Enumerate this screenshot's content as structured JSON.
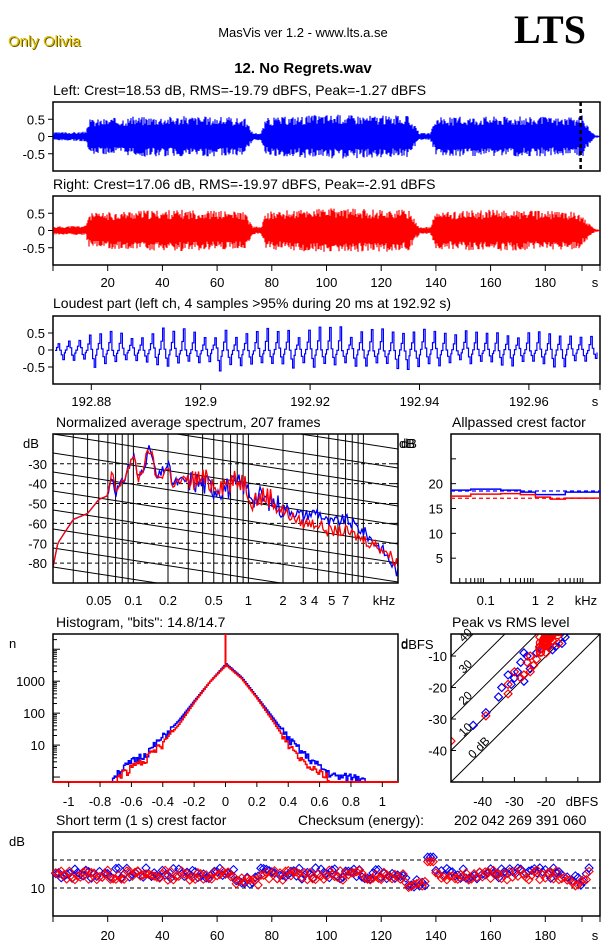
{
  "header": {
    "artist": "Only Olivia",
    "app_title": "MasVis ver 1.2 - www.lts.a.se",
    "logo": "LTS",
    "file_name": "12. No Regrets.wav"
  },
  "colors": {
    "left": "#0000ff",
    "right": "#ff0000",
    "brand": "#e0c000"
  },
  "chart_data": [
    {
      "id": "left-waveform",
      "type": "area",
      "title": "Left: Crest=18.53 dB, RMS=-19.79 dBFS, Peak=-1.27 dBFS",
      "channel": "left",
      "ylim": [
        -1,
        1
      ],
      "yticks": [
        "0.5",
        "0",
        "-0.5"
      ],
      "xlim": [
        0,
        200
      ],
      "marker_x": 192.92,
      "envelope": [
        [
          0,
          0.12
        ],
        [
          12,
          0.14
        ],
        [
          13,
          0.5
        ],
        [
          30,
          0.58
        ],
        [
          50,
          0.6
        ],
        [
          70,
          0.55
        ],
        [
          73,
          0.12
        ],
        [
          76,
          0.1
        ],
        [
          78,
          0.55
        ],
        [
          100,
          0.65
        ],
        [
          130,
          0.6
        ],
        [
          134,
          0.1
        ],
        [
          138,
          0.1
        ],
        [
          140,
          0.55
        ],
        [
          160,
          0.6
        ],
        [
          192,
          0.55
        ],
        [
          193,
          0.68
        ],
        [
          196,
          0.25
        ],
        [
          198,
          0.05
        ],
        [
          200,
          0.02
        ]
      ]
    },
    {
      "id": "right-waveform",
      "type": "area",
      "title": "Right: Crest=17.06 dB, RMS=-19.97 dBFS, Peak=-2.91 dBFS",
      "channel": "right",
      "ylim": [
        -1,
        1
      ],
      "yticks": [
        "0.5",
        "0",
        "-0.5"
      ],
      "xlim": [
        0,
        200
      ],
      "xticks": [
        "20",
        "40",
        "60",
        "80",
        "100",
        "120",
        "140",
        "160",
        "180",
        "s"
      ],
      "envelope": [
        [
          0,
          0.12
        ],
        [
          12,
          0.14
        ],
        [
          13,
          0.5
        ],
        [
          30,
          0.58
        ],
        [
          50,
          0.6
        ],
        [
          70,
          0.55
        ],
        [
          73,
          0.12
        ],
        [
          76,
          0.1
        ],
        [
          78,
          0.55
        ],
        [
          100,
          0.65
        ],
        [
          130,
          0.6
        ],
        [
          134,
          0.1
        ],
        [
          138,
          0.1
        ],
        [
          140,
          0.55
        ],
        [
          160,
          0.6
        ],
        [
          192,
          0.55
        ],
        [
          196,
          0.2
        ],
        [
          198,
          0.05
        ],
        [
          200,
          0.02
        ]
      ]
    },
    {
      "id": "loudest-part",
      "type": "line",
      "title": "Loudest part (left  ch, 4 samples >95% during 20 ms at 192.92 s)",
      "ylim": [
        -1,
        1
      ],
      "yticks": [
        "0.5",
        "0",
        "-0.5"
      ],
      "xlim": [
        192.873,
        192.973
      ],
      "xticks": [
        "192.88",
        "192.9",
        "192.92",
        "192.94",
        "192.96",
        "s"
      ],
      "peak_values": [
        0.3,
        0.5,
        0.55,
        0.5,
        0.7,
        0.55,
        0.6,
        0.65,
        0.7,
        0.6,
        0.85,
        0.6,
        0.65,
        0.6,
        0.75,
        0.6,
        0.55,
        0.5,
        0.55,
        0.5,
        0.45
      ],
      "trough_values": [
        -0.4,
        -0.6,
        -0.4,
        -0.45,
        -0.5,
        -0.55,
        -0.7,
        -0.6,
        -0.55,
        -0.55,
        -0.55,
        -0.5,
        -0.55,
        -0.7,
        -0.5,
        -0.45,
        -0.45,
        -0.5,
        -0.5,
        -0.5,
        -0.4
      ]
    },
    {
      "id": "spectrum",
      "type": "line",
      "title": "Normalized average spectrum, 207 frames",
      "ylabel": "dB",
      "yticks": [
        "-30",
        "-40",
        "-50",
        "-60",
        "-70",
        "-80"
      ],
      "ylim": [
        -90,
        -15
      ],
      "xscale": "log",
      "xlim": [
        0.02,
        20
      ],
      "xlabel": "kHz",
      "xticks": [
        "0.05",
        "0.1",
        "0.2",
        "0.5",
        "1",
        "2",
        "3",
        "4",
        "5",
        "7",
        "kHz"
      ],
      "series": [
        {
          "name": "left",
          "points": [
            [
              0.02,
              -82
            ],
            [
              0.022,
              -70
            ],
            [
              0.025,
              -65
            ],
            [
              0.03,
              -58
            ],
            [
              0.04,
              -55
            ],
            [
              0.05,
              -48
            ],
            [
              0.06,
              -46
            ],
            [
              0.065,
              -35
            ],
            [
              0.07,
              -44
            ],
            [
              0.08,
              -40
            ],
            [
              0.09,
              -32
            ],
            [
              0.1,
              -25
            ],
            [
              0.11,
              -38
            ],
            [
              0.14,
              -22
            ],
            [
              0.16,
              -38
            ],
            [
              0.2,
              -30
            ],
            [
              0.22,
              -40
            ],
            [
              0.3,
              -38
            ],
            [
              0.4,
              -40
            ],
            [
              0.5,
              -42
            ],
            [
              0.7,
              -42
            ],
            [
              0.9,
              -40
            ],
            [
              1.1,
              -46
            ],
            [
              1.5,
              -48
            ],
            [
              2,
              -52
            ],
            [
              3,
              -56
            ],
            [
              4,
              -54
            ],
            [
              5,
              -60
            ],
            [
              7,
              -58
            ],
            [
              10,
              -64
            ],
            [
              15,
              -74
            ],
            [
              20,
              -85
            ]
          ]
        },
        {
          "name": "right",
          "points": [
            [
              0.02,
              -82
            ],
            [
              0.022,
              -70
            ],
            [
              0.025,
              -65
            ],
            [
              0.03,
              -58
            ],
            [
              0.04,
              -55
            ],
            [
              0.05,
              -48
            ],
            [
              0.06,
              -46
            ],
            [
              0.065,
              -35
            ],
            [
              0.07,
              -44
            ],
            [
              0.08,
              -40
            ],
            [
              0.09,
              -32
            ],
            [
              0.1,
              -26
            ],
            [
              0.11,
              -38
            ],
            [
              0.14,
              -22
            ],
            [
              0.16,
              -38
            ],
            [
              0.2,
              -32
            ],
            [
              0.22,
              -40
            ],
            [
              0.3,
              -38
            ],
            [
              0.4,
              -38
            ],
            [
              0.5,
              -40
            ],
            [
              0.7,
              -40
            ],
            [
              0.9,
              -38
            ],
            [
              1.1,
              -48
            ],
            [
              1.5,
              -46
            ],
            [
              2,
              -54
            ],
            [
              3,
              -60
            ],
            [
              4,
              -60
            ],
            [
              5,
              -64
            ],
            [
              7,
              -64
            ],
            [
              10,
              -68
            ],
            [
              15,
              -73
            ],
            [
              20,
              -80
            ]
          ]
        }
      ]
    },
    {
      "id": "allpassed-crest",
      "type": "line",
      "title": "Allpassed crest factor",
      "ylabel": "dB",
      "yticks": [
        "20",
        "15",
        "10",
        "5"
      ],
      "ylim": [
        0,
        30
      ],
      "xscale": "log",
      "xlim": [
        0.02,
        20
      ],
      "xticks": [
        "0.1",
        "1",
        "2",
        "kHz"
      ],
      "series": [
        {
          "name": "left",
          "points": [
            [
              0.02,
              18.7
            ],
            [
              0.05,
              18.9
            ],
            [
              0.2,
              18.7
            ],
            [
              0.5,
              18.3
            ],
            [
              1,
              17.8
            ],
            [
              2,
              17.8
            ],
            [
              4,
              18.3
            ],
            [
              20,
              18.5
            ]
          ],
          "reference": 18.53
        },
        {
          "name": "right",
          "points": [
            [
              0.02,
              17.5
            ],
            [
              0.05,
              17.9
            ],
            [
              0.2,
              18.0
            ],
            [
              0.5,
              17.8
            ],
            [
              1,
              17.3
            ],
            [
              2,
              16.9
            ],
            [
              4,
              17.1
            ],
            [
              20,
              17.1
            ]
          ],
          "reference": 17.06
        }
      ]
    },
    {
      "id": "histogram",
      "type": "line",
      "title": "Histogram, \"bits\": 14.8/14.7",
      "ylabel": "n",
      "yscale": "log",
      "yticks": [
        "1000",
        "100",
        "10"
      ],
      "ylim": [
        0.7,
        30000
      ],
      "xlim": [
        -1.1,
        1.1
      ],
      "xticks": [
        "-1",
        "-0.8",
        "-0.6",
        "-0.4",
        "-0.2",
        "0",
        "0.2",
        "0.4",
        "0.6",
        "0.8",
        "1"
      ],
      "series": [
        {
          "name": "left",
          "points": [
            [
              -0.73,
              1
            ],
            [
              -0.6,
              3
            ],
            [
              -0.5,
              6
            ],
            [
              -0.4,
              18
            ],
            [
              -0.3,
              60
            ],
            [
              -0.2,
              250
            ],
            [
              -0.1,
              1000
            ],
            [
              0,
              3500
            ],
            [
              0.1,
              1300
            ],
            [
              0.2,
              300
            ],
            [
              0.3,
              70
            ],
            [
              0.4,
              15
            ],
            [
              0.5,
              5
            ],
            [
              0.6,
              2
            ],
            [
              0.7,
              1
            ],
            [
              0.88,
              1
            ]
          ]
        },
        {
          "name": "right",
          "points": [
            [
              -0.7,
              1
            ],
            [
              -0.6,
              2
            ],
            [
              -0.5,
              4
            ],
            [
              -0.4,
              12
            ],
            [
              -0.3,
              45
            ],
            [
              -0.2,
              230
            ],
            [
              -0.1,
              1000
            ],
            [
              0,
              3200
            ],
            [
              0.1,
              1200
            ],
            [
              0.2,
              280
            ],
            [
              0.3,
              55
            ],
            [
              0.4,
              10
            ],
            [
              0.5,
              3
            ],
            [
              0.6,
              1.5
            ],
            [
              0.65,
              1
            ]
          ]
        }
      ],
      "zero_spike": 30000
    },
    {
      "id": "peak-vs-rms",
      "type": "scatter",
      "title": "Peak vs RMS level",
      "ylabel": "dBFS",
      "xlabel": "dBFS",
      "xlim": [
        -50,
        -3
      ],
      "ylim": [
        -50,
        -3
      ],
      "xticks": [
        "-40",
        "-30",
        "-20",
        "dBFS"
      ],
      "yticks": [
        "-10",
        "-20",
        "-30",
        "-40"
      ],
      "diagonals": [
        "0 dB",
        "10",
        "20",
        "30",
        "40"
      ],
      "series": [
        {
          "name": "left",
          "points": [
            [
              -14,
              -4
            ],
            [
              -15,
              -6
            ],
            [
              -17,
              -7
            ],
            [
              -20,
              -4
            ],
            [
              -22,
              -7
            ],
            [
              -23,
              -9
            ],
            [
              -27,
              -9
            ],
            [
              -28,
              -12
            ],
            [
              -29,
              -15
            ],
            [
              -30,
              -17
            ],
            [
              -31,
              -19
            ],
            [
              -32,
              -16
            ],
            [
              -34,
              -20
            ],
            [
              -35,
              -23
            ],
            [
              -39,
              -28
            ],
            [
              -43,
              -32
            ],
            [
              -26,
              -10
            ],
            [
              -18,
              -8
            ],
            [
              -25,
              -14
            ],
            [
              -27,
              -18
            ]
          ]
        },
        {
          "name": "right",
          "points": [
            [
              -21,
              -5
            ],
            [
              -20,
              -6
            ],
            [
              -19,
              -7
            ],
            [
              -22,
              -4
            ],
            [
              -18,
              -5
            ],
            [
              -16,
              -6
            ],
            [
              -20,
              -9
            ],
            [
              -23,
              -11
            ],
            [
              -24,
              -13
            ],
            [
              -25,
              -15
            ],
            [
              -27,
              -16
            ],
            [
              -28,
              -17
            ],
            [
              -30,
              -15
            ],
            [
              -32,
              -19
            ],
            [
              -32,
              -22
            ],
            [
              -39,
              -29
            ],
            [
              -50,
              -37
            ],
            [
              -25,
              -10
            ],
            [
              -22,
              -8
            ],
            [
              -26,
              -12
            ]
          ]
        }
      ]
    },
    {
      "id": "short-term-crest",
      "type": "scatter",
      "title": "Short term (1 s) crest factor",
      "ylabel": "dB",
      "yticks": [
        "10"
      ],
      "ylim": [
        5,
        20
      ],
      "ref_lines": [
        10,
        15
      ],
      "xlim": [
        0,
        200
      ],
      "xticks": [
        "20",
        "40",
        "60",
        "80",
        "100",
        "120",
        "140",
        "160",
        "180",
        "s"
      ],
      "series": [
        {
          "name": "left",
          "seed": 7,
          "mean": 12.6,
          "spread": 1.0
        },
        {
          "name": "right",
          "seed": 13,
          "mean": 12.3,
          "spread": 0.9
        }
      ],
      "spike": {
        "x": 138,
        "value": 15.5
      }
    }
  ],
  "footer": {
    "checksum_label": "Checksum (energy):",
    "checksum_value": "202 042 269 391 060"
  }
}
